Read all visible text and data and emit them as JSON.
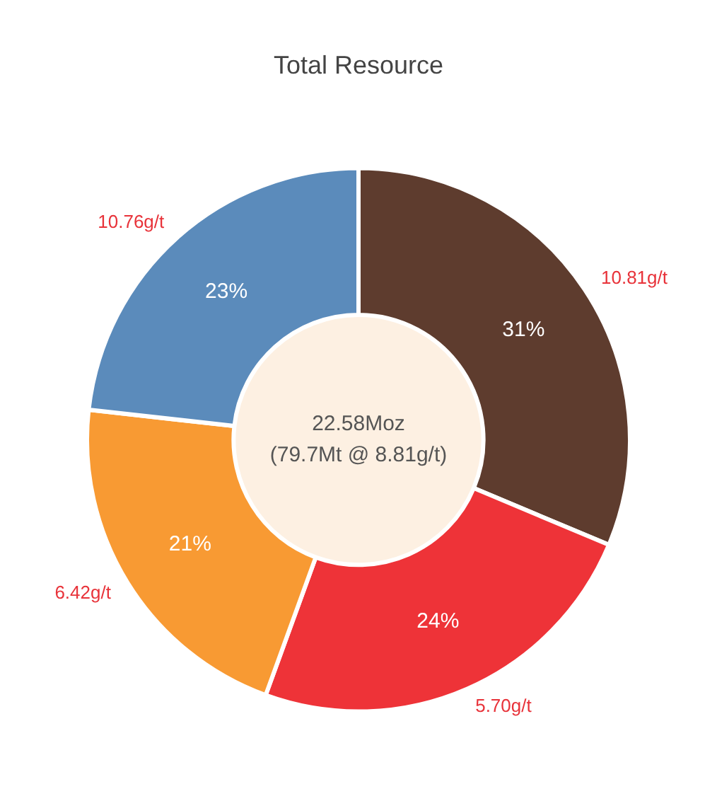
{
  "chart_data": {
    "type": "donut",
    "title": "Total Resource",
    "categories": [
      "10.81g/t",
      "5.70g/t",
      "6.42g/t",
      "10.76g/t"
    ],
    "values": [
      31,
      24,
      21,
      23
    ],
    "value_labels": [
      "31%",
      "24%",
      "21%",
      "23%"
    ],
    "colors": [
      "#5e3c2e",
      "#ee3338",
      "#f89a33",
      "#5b8bbb"
    ],
    "annotations": [
      "22.58Moz",
      "(79.7Mt @ 8.81g/t)"
    ],
    "legend": false
  }
}
